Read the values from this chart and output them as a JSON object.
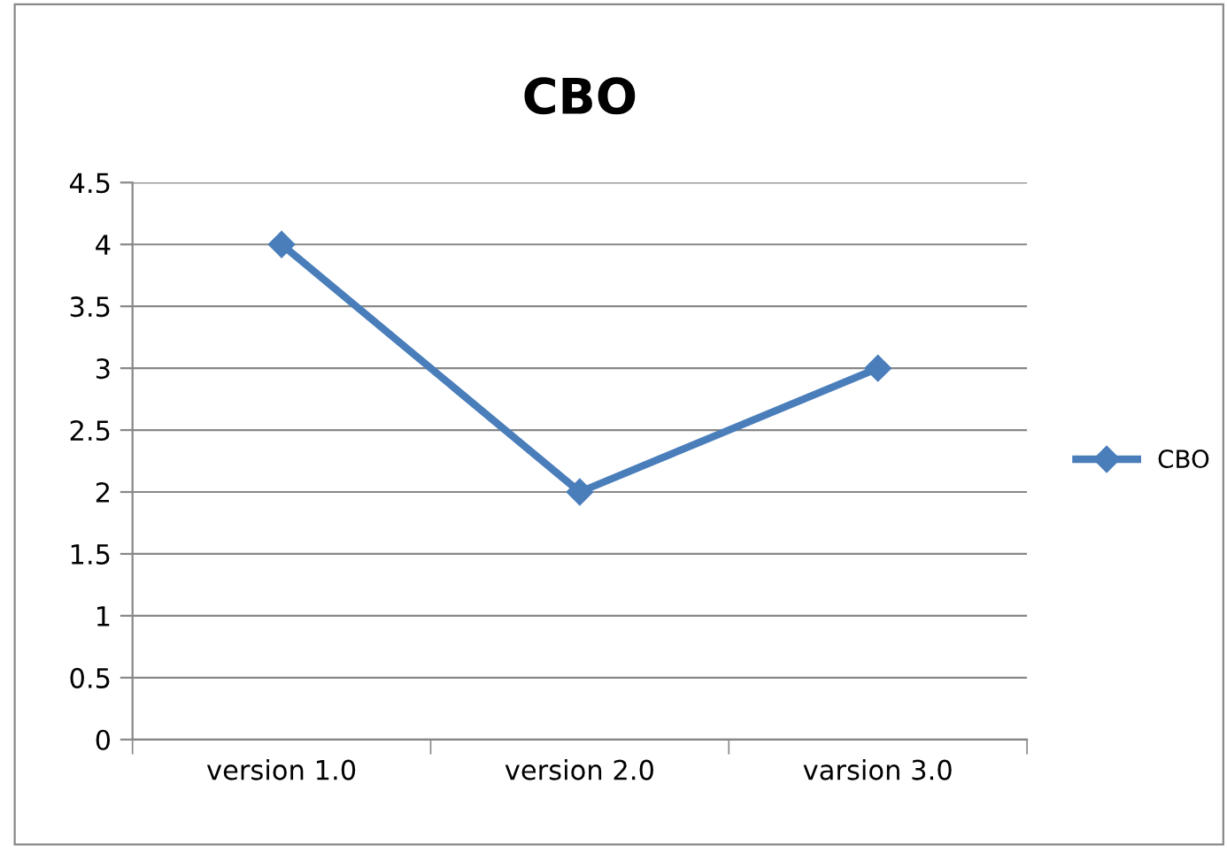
{
  "chart_data": {
    "type": "line",
    "title": "CBO",
    "categories": [
      "version 1.0",
      "version 2.0",
      "varsion 3.0"
    ],
    "series": [
      {
        "name": "CBO",
        "color": "#4a7ebb",
        "values": [
          4,
          2,
          3
        ]
      }
    ],
    "ylim": [
      0,
      4.5
    ],
    "yticks": [
      0,
      {
        "value": 0.5,
        "label": "0.5"
      },
      1,
      {
        "value": 1.5,
        "label": "1.5"
      },
      2,
      {
        "value": 2.5,
        "label": "2.5"
      },
      3,
      {
        "value": 3.5,
        "label": "3.5"
      },
      4,
      {
        "value": 4.5,
        "label": "4.5"
      }
    ],
    "grid": "y",
    "legend": "right",
    "marker": "diamond",
    "line_style": "solid"
  }
}
